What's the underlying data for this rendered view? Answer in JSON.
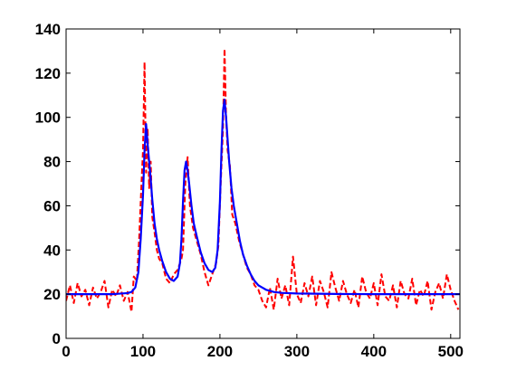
{
  "chart_data": {
    "type": "line",
    "title": "",
    "xlabel": "",
    "ylabel": "",
    "xlim": [
      0,
      512
    ],
    "ylim": [
      0,
      140
    ],
    "grid": false,
    "legend": "none",
    "x_ticks": [
      "0",
      "100",
      "200",
      "300",
      "400",
      "500"
    ],
    "y_ticks": [
      "0",
      "20",
      "40",
      "60",
      "80",
      "100",
      "120",
      "140"
    ],
    "series": [
      {
        "color": "#ff0000",
        "style": "dashed",
        "x": [
          0,
          5,
          10,
          15,
          20,
          25,
          30,
          35,
          40,
          45,
          50,
          55,
          60,
          65,
          70,
          75,
          80,
          85,
          88,
          92,
          95,
          98,
          100,
          102,
          104,
          106,
          108,
          110,
          112,
          115,
          118,
          121,
          125,
          130,
          135,
          140,
          145,
          150,
          152,
          155,
          158,
          161,
          165,
          170,
          175,
          180,
          185,
          190,
          195,
          198,
          201,
          204,
          206,
          208,
          210,
          213,
          216,
          220,
          225,
          230,
          235,
          240,
          245,
          250,
          255,
          260,
          265,
          270,
          275,
          280,
          285,
          290,
          295,
          300,
          305,
          310,
          315,
          320,
          325,
          330,
          335,
          340,
          345,
          350,
          355,
          360,
          365,
          370,
          375,
          380,
          385,
          390,
          395,
          400,
          405,
          410,
          415,
          420,
          425,
          430,
          435,
          440,
          445,
          450,
          455,
          460,
          465,
          470,
          475,
          480,
          485,
          490,
          495,
          500,
          505,
          510
        ],
        "y": [
          17,
          24,
          16,
          25,
          19,
          22,
          15,
          23,
          18,
          21,
          26,
          14,
          22,
          19,
          24,
          17,
          21,
          12,
          28,
          26,
          45,
          70,
          85,
          125,
          75,
          95,
          68,
          80,
          55,
          48,
          40,
          36,
          34,
          27,
          25,
          29,
          31,
          36,
          40,
          70,
          82,
          60,
          50,
          44,
          38,
          30,
          24,
          29,
          34,
          42,
          70,
          95,
          131,
          100,
          85,
          78,
          56,
          52,
          44,
          38,
          32,
          29,
          24,
          22,
          17,
          14,
          23,
          13,
          27,
          18,
          24,
          15,
          37,
          20,
          16,
          25,
          19,
          28,
          15,
          26,
          21,
          14,
          30,
          23,
          17,
          26,
          20,
          16,
          22,
          14,
          28,
          21,
          18,
          25,
          15,
          29,
          19,
          17,
          24,
          14,
          26,
          20,
          18,
          27,
          15,
          22,
          19,
          26,
          13,
          21,
          25,
          18,
          29,
          22,
          17,
          13
        ]
      },
      {
        "color": "#0000ff",
        "style": "solid",
        "x": [
          0,
          20,
          40,
          60,
          80,
          85,
          90,
          94,
          97,
          100,
          102,
          104,
          106,
          108,
          110,
          112,
          115,
          118,
          121,
          125,
          130,
          135,
          140,
          145,
          148,
          150,
          152,
          154,
          156,
          158,
          160,
          163,
          166,
          170,
          175,
          180,
          185,
          190,
          194,
          197,
          200,
          202,
          204,
          206,
          208,
          210,
          212,
          215,
          218,
          222,
          226,
          230,
          235,
          240,
          245,
          250,
          255,
          260,
          265,
          270,
          280,
          300,
          350,
          400,
          450,
          500,
          512
        ],
        "y": [
          20,
          20,
          20,
          20,
          20.5,
          21,
          23,
          30,
          45,
          65,
          85,
          97,
          88,
          80,
          72,
          63,
          52,
          45,
          40,
          35,
          30,
          27,
          26,
          28,
          34,
          45,
          62,
          76,
          80,
          76,
          70,
          60,
          52,
          46,
          39,
          34,
          31,
          30,
          32,
          40,
          62,
          85,
          103,
          108,
          100,
          90,
          80,
          68,
          60,
          52,
          44,
          38,
          33,
          29,
          26,
          24,
          23,
          22,
          21.5,
          21,
          20.6,
          20.3,
          20.1,
          20,
          20,
          20,
          20
        ]
      }
    ]
  }
}
